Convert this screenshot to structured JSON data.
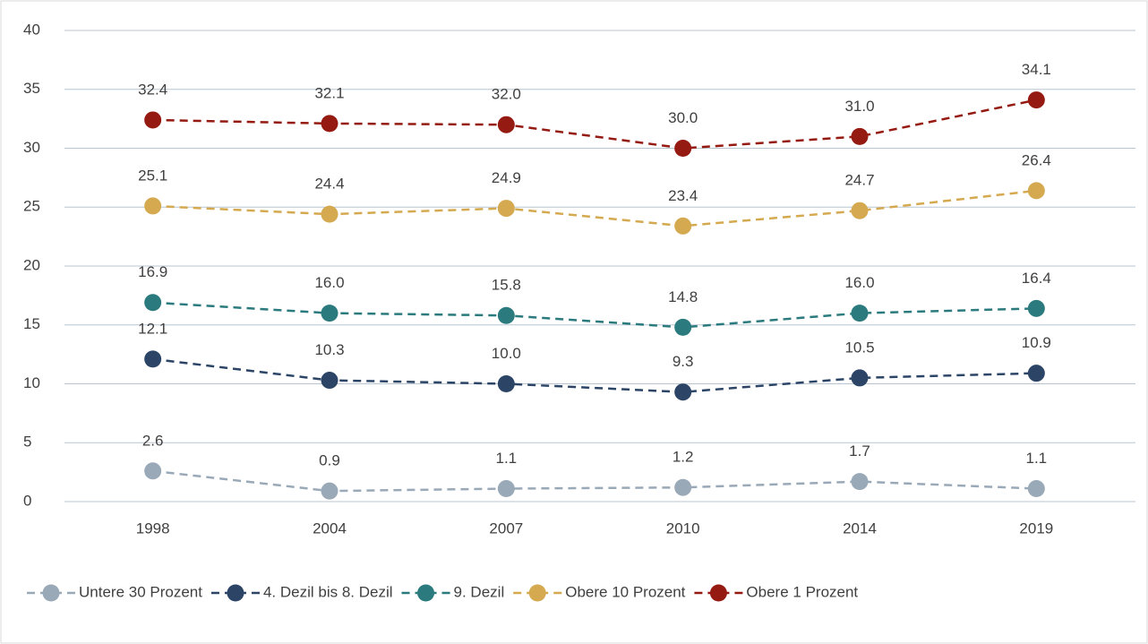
{
  "chart_data": {
    "type": "line",
    "categories": [
      "1998",
      "2004",
      "2007",
      "2010",
      "2014",
      "2019"
    ],
    "ylim": [
      0,
      40
    ],
    "yticks": [
      0,
      5,
      10,
      15,
      20,
      25,
      30,
      35,
      40
    ],
    "grid": true,
    "legend": "bottom",
    "series": [
      {
        "name": "Untere 30 Prozent",
        "color": "#9aa9b8",
        "values": [
          2.6,
          0.9,
          1.1,
          1.2,
          1.7,
          1.1
        ],
        "value_labels": [
          "2.6",
          "0.9",
          "1.1",
          "1.2",
          "1.7",
          "1.1"
        ]
      },
      {
        "name": "4. Dezil bis 8. Dezil",
        "color": "#2c4567",
        "values": [
          12.1,
          10.3,
          10.0,
          9.3,
          10.5,
          10.9
        ],
        "value_labels": [
          "12.1",
          "10.3",
          "10.0",
          "9.3",
          "10.5",
          "10.9"
        ]
      },
      {
        "name": "9. Dezil",
        "color": "#2b7a7d",
        "values": [
          16.9,
          16.0,
          15.8,
          14.8,
          16.0,
          16.4
        ],
        "value_labels": [
          "16.9",
          "16.0",
          "15.8",
          "14.8",
          "16.0",
          "16.4"
        ]
      },
      {
        "name": "Obere 10 Prozent",
        "color": "#d5a94f",
        "values": [
          25.1,
          24.4,
          24.9,
          23.4,
          24.7,
          26.4
        ],
        "value_labels": [
          "25.1",
          "24.4",
          "24.9",
          "23.4",
          "24.7",
          "26.4"
        ]
      },
      {
        "name": "Obere 1 Prozent",
        "color": "#951b12",
        "values": [
          32.4,
          32.1,
          32.0,
          30.0,
          31.0,
          34.1
        ],
        "value_labels": [
          "32.4",
          "32.1",
          "32.0",
          "30.0",
          "31.0",
          "34.1"
        ]
      }
    ]
  }
}
